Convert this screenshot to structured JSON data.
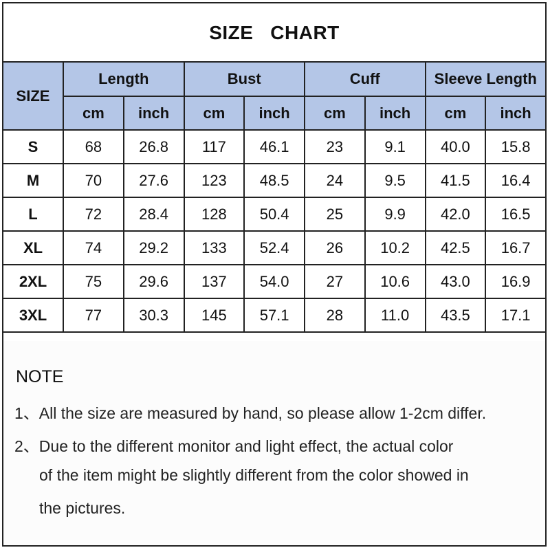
{
  "title": "SIZE   CHART",
  "header_color": "#b4c6e7",
  "table": {
    "size_header": "SIZE",
    "groups": [
      "Length",
      "Bust",
      "Cuff",
      "Sleeve Length"
    ],
    "units": [
      "cm",
      "inch",
      "cm",
      "inch",
      "cm",
      "inch",
      "cm",
      "inch"
    ],
    "rows": [
      {
        "size": "S",
        "values": [
          "68",
          "26.8",
          "117",
          "46.1",
          "23",
          "9.1",
          "40.0",
          "15.8"
        ]
      },
      {
        "size": "M",
        "values": [
          "70",
          "27.6",
          "123",
          "48.5",
          "24",
          "9.5",
          "41.5",
          "16.4"
        ]
      },
      {
        "size": "L",
        "values": [
          "72",
          "28.4",
          "128",
          "50.4",
          "25",
          "9.9",
          "42.0",
          "16.5"
        ]
      },
      {
        "size": "XL",
        "values": [
          "74",
          "29.2",
          "133",
          "52.4",
          "26",
          "10.2",
          "42.5",
          "16.7"
        ]
      },
      {
        "size": "2XL",
        "values": [
          "75",
          "29.6",
          "137",
          "54.0",
          "27",
          "10.6",
          "43.0",
          "16.9"
        ]
      },
      {
        "size": "3XL",
        "values": [
          "77",
          "30.3",
          "145",
          "57.1",
          "28",
          "11.0",
          "43.5",
          "17.1"
        ]
      }
    ]
  },
  "notes": {
    "title": "NOTE",
    "lines": [
      "1、All the size are measured by hand, so please allow 1-2cm differ.",
      "2、Due to the different monitor and light effect, the actual color",
      "of the item might be slightly different from the color showed in",
      "the pictures."
    ]
  }
}
